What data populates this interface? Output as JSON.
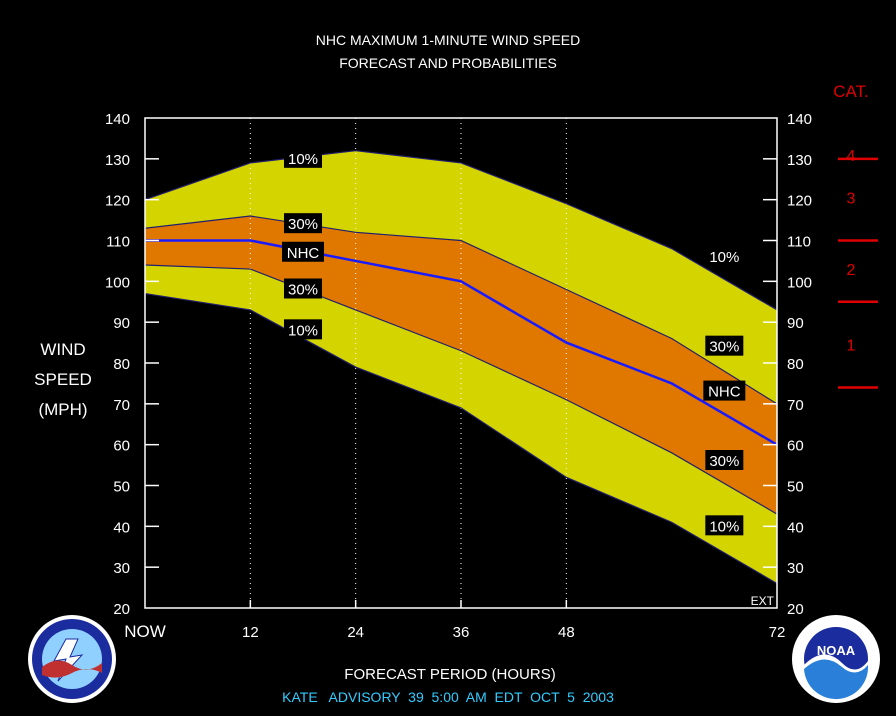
{
  "title_line1": "NHC MAXIMUM 1-MINUTE WIND SPEED",
  "title_line2": "FORECAST AND PROBABILITIES",
  "ylabel_lines": [
    "WIND",
    "SPEED",
    "(MPH)"
  ],
  "xlabel": "FORECAST PERIOD (HOURS)",
  "advisory": "KATE   ADVISORY  39  5:00  AM  EDT  OCT  5  2003",
  "ext_label": "EXT",
  "cat_label": "CAT.",
  "categories": [
    {
      "label": "4",
      "mid": 131
    },
    {
      "label": "3",
      "mid": 120.5
    },
    {
      "label": "2",
      "mid": 103
    },
    {
      "label": "1",
      "mid": 84.5
    }
  ],
  "cat_thresholds": [
    130,
    110,
    95,
    74
  ],
  "logos": {
    "left": "NATIONAL WEATHER SERVICE",
    "right": "NOAA"
  },
  "colors": {
    "outer_band": "#d4d400",
    "inner_band": "#e07800",
    "nhc_line": "#1a1aff",
    "category": "#e00000",
    "advisory": "#33ccff",
    "frame": "#ffffff"
  },
  "chart_data": {
    "type": "area",
    "x_tick_labels": [
      "NOW",
      "12",
      "24",
      "36",
      "48",
      "72"
    ],
    "x_ticks": [
      0,
      12,
      24,
      36,
      48,
      72
    ],
    "xlim": [
      0,
      72
    ],
    "ylim": [
      20,
      140
    ],
    "y_ticks": [
      20,
      30,
      40,
      50,
      60,
      70,
      80,
      90,
      100,
      110,
      120,
      130,
      140
    ],
    "x": [
      0,
      12,
      24,
      36,
      48,
      60,
      72
    ],
    "series": [
      {
        "name": "10%",
        "values": [
          120,
          129,
          132,
          129,
          119,
          108,
          93
        ]
      },
      {
        "name": "30%",
        "values": [
          113,
          116,
          112,
          110,
          98,
          86,
          70
        ]
      },
      {
        "name": "NHC",
        "values": [
          110,
          110,
          105,
          100,
          85,
          75,
          60
        ]
      },
      {
        "name": "30%",
        "values": [
          104,
          103,
          93,
          83,
          71,
          58,
          43
        ]
      },
      {
        "name": "10%",
        "values": [
          97,
          93,
          79,
          69,
          52,
          41,
          26
        ]
      }
    ],
    "band_labels": [
      {
        "text": "10%",
        "x": 18,
        "y": 130
      },
      {
        "text": "30%",
        "x": 18,
        "y": 114
      },
      {
        "text": "NHC",
        "x": 18,
        "y": 107
      },
      {
        "text": "30%",
        "x": 18,
        "y": 98
      },
      {
        "text": "10%",
        "x": 18,
        "y": 88
      },
      {
        "text": "10%",
        "x": 66,
        "y": 106
      },
      {
        "text": "30%",
        "x": 66,
        "y": 84
      },
      {
        "text": "NHC",
        "x": 66,
        "y": 73
      },
      {
        "text": "30%",
        "x": 66,
        "y": 56
      },
      {
        "text": "10%",
        "x": 66,
        "y": 40
      }
    ]
  }
}
